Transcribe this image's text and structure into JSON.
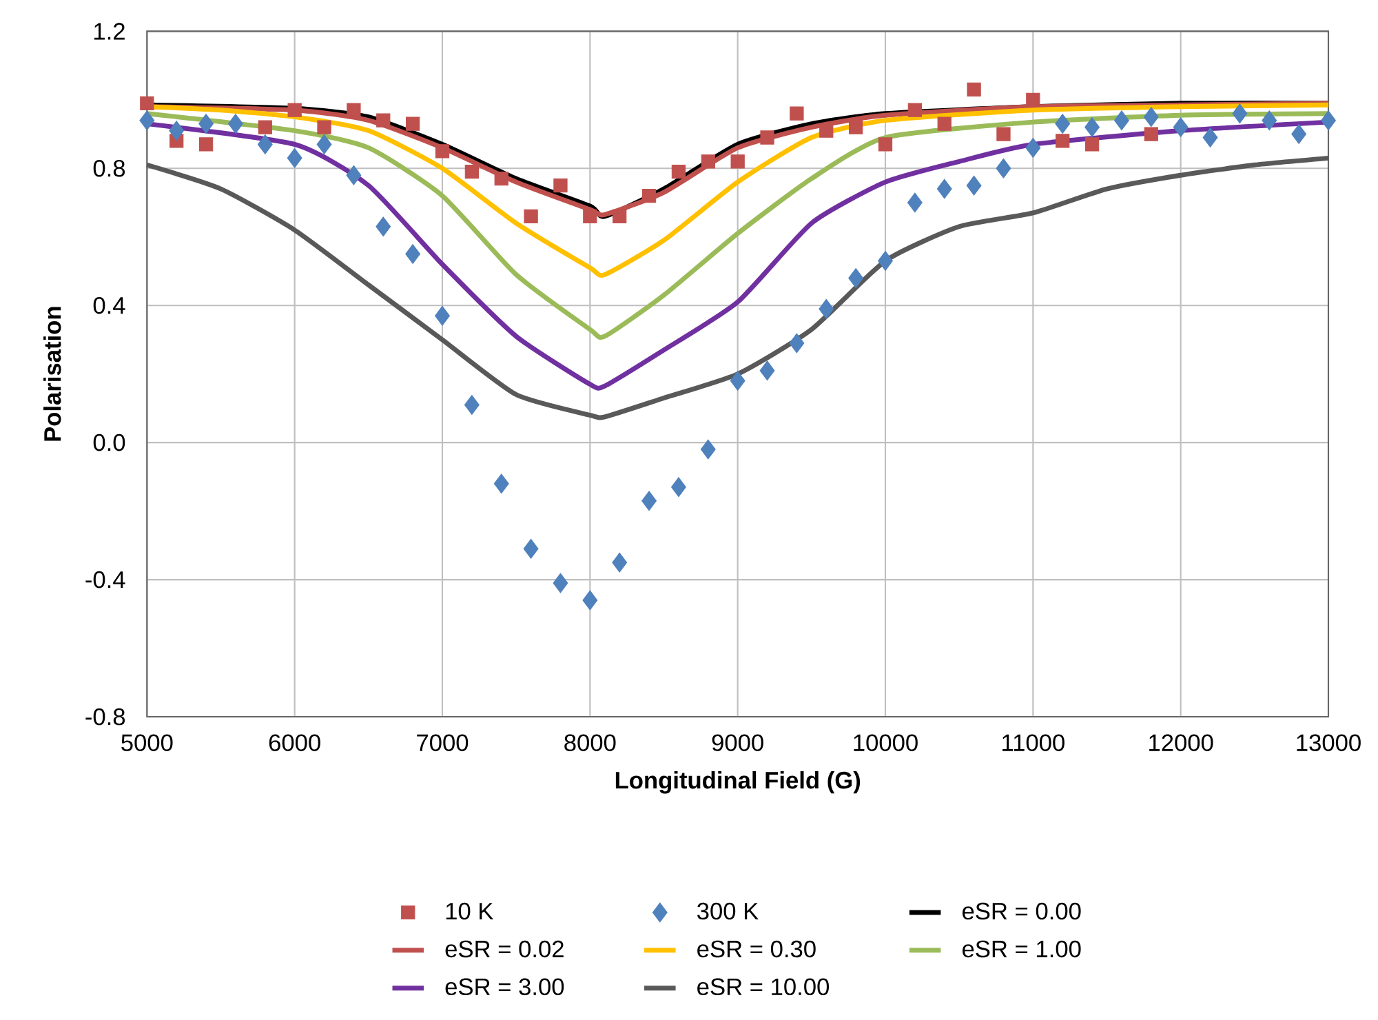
{
  "chart_data": {
    "type": "line",
    "xlabel": "Longitudinal Field (G)",
    "ylabel": "Polarisation",
    "xlim": [
      5000,
      13000
    ],
    "xticks": [
      5000,
      6000,
      7000,
      8000,
      9000,
      10000,
      11000,
      12000,
      13000
    ],
    "ylim": [
      -0.8,
      1.2
    ],
    "yticks": [
      {
        "value": -0.8,
        "label": "-0.8"
      },
      {
        "value": -0.4,
        "label": "-0.4"
      },
      {
        "value": 0,
        "label": "0.0"
      },
      0.4,
      0.8,
      1.2
    ],
    "grid": true,
    "legend": "bottom",
    "series": [
      {
        "name": "10 K",
        "type": "scatter",
        "marker": "square",
        "color": "#c0504d",
        "x": [
          5000,
          5200,
          5400,
          5800,
          6000,
          6200,
          6400,
          6600,
          6800,
          7000,
          7200,
          7400,
          7600,
          7800,
          8000,
          8200,
          8400,
          8600,
          8800,
          9000,
          9200,
          9400,
          9600,
          9800,
          10000,
          10200,
          10400,
          10600,
          10800,
          11000,
          11200,
          11400,
          11800
        ],
        "values": [
          0.99,
          0.88,
          0.87,
          0.92,
          0.97,
          0.92,
          0.97,
          0.94,
          0.93,
          0.85,
          0.79,
          0.77,
          0.66,
          0.75,
          0.66,
          0.66,
          0.72,
          0.79,
          0.82,
          0.82,
          0.89,
          0.96,
          0.91,
          0.92,
          0.87,
          0.97,
          0.93,
          1.03,
          0.9,
          1.0,
          0.88,
          0.87,
          0.9
        ]
      },
      {
        "name": "300 K",
        "type": "scatter",
        "marker": "diamond",
        "color": "#4f81bd",
        "x": [
          5000,
          5200,
          5400,
          5600,
          5800,
          6000,
          6200,
          6400,
          6600,
          6800,
          7000,
          7200,
          7400,
          7600,
          7800,
          8000,
          8200,
          8400,
          8600,
          8800,
          9000,
          9200,
          9400,
          9600,
          9800,
          10000,
          10200,
          10400,
          10600,
          10800,
          11000,
          11200,
          11400,
          11600,
          11800,
          12000,
          12200,
          12400,
          12600,
          12800,
          13000
        ],
        "values": [
          0.94,
          0.91,
          0.93,
          0.93,
          0.87,
          0.83,
          0.87,
          0.78,
          0.63,
          0.55,
          0.37,
          0.11,
          -0.12,
          -0.31,
          -0.41,
          -0.46,
          -0.35,
          -0.17,
          -0.13,
          -0.02,
          0.18,
          0.21,
          0.29,
          0.39,
          0.48,
          0.53,
          0.7,
          0.74,
          0.75,
          0.8,
          0.86,
          0.93,
          0.92,
          0.94,
          0.95,
          0.92,
          0.89,
          0.96,
          0.94,
          0.9,
          0.94
        ]
      },
      {
        "name": "eSR = 0.00",
        "marker": "none",
        "color": "#000000",
        "x": [
          5000,
          6000,
          6500,
          7000,
          7500,
          8000,
          8100,
          8500,
          9000,
          9500,
          10000,
          11000,
          12000,
          13000
        ],
        "values": [
          0.985,
          0.975,
          0.95,
          0.87,
          0.77,
          0.69,
          0.66,
          0.74,
          0.87,
          0.93,
          0.96,
          0.98,
          0.99,
          0.99
        ]
      },
      {
        "name": "eSR = 0.02",
        "marker": "none",
        "color": "#c0504d",
        "x": [
          5000,
          6000,
          6500,
          7000,
          7500,
          8000,
          8100,
          8500,
          9000,
          9500,
          10000,
          11000,
          12000,
          13000
        ],
        "values": [
          0.98,
          0.97,
          0.94,
          0.86,
          0.76,
          0.68,
          0.665,
          0.73,
          0.86,
          0.92,
          0.955,
          0.98,
          0.985,
          0.99
        ]
      },
      {
        "name": "eSR = 0.30",
        "marker": "none",
        "color": "#ffc000",
        "x": [
          5000,
          5500,
          6000,
          6500,
          7000,
          7500,
          8000,
          8100,
          8500,
          9000,
          9500,
          10000,
          11000,
          12000,
          13000
        ],
        "values": [
          0.98,
          0.97,
          0.95,
          0.91,
          0.8,
          0.64,
          0.51,
          0.49,
          0.59,
          0.76,
          0.89,
          0.94,
          0.97,
          0.98,
          0.985
        ]
      },
      {
        "name": "eSR = 1.00",
        "marker": "none",
        "color": "#9bbb59",
        "x": [
          5000,
          6000,
          6500,
          7000,
          7500,
          8000,
          8100,
          8500,
          9000,
          9500,
          10000,
          11000,
          12000,
          13000
        ],
        "values": [
          0.96,
          0.91,
          0.86,
          0.72,
          0.49,
          0.33,
          0.31,
          0.43,
          0.61,
          0.77,
          0.89,
          0.935,
          0.955,
          0.96
        ]
      },
      {
        "name": "eSR = 3.00",
        "marker": "none",
        "color": "#7030a0",
        "x": [
          5000,
          6000,
          6500,
          7000,
          7500,
          8000,
          8100,
          8500,
          9000,
          9500,
          10000,
          10500,
          11000,
          12000,
          13000
        ],
        "values": [
          0.93,
          0.87,
          0.75,
          0.52,
          0.31,
          0.17,
          0.165,
          0.27,
          0.41,
          0.64,
          0.76,
          0.82,
          0.87,
          0.91,
          0.935
        ]
      },
      {
        "name": "eSR = 10.00",
        "marker": "none",
        "color": "#595959",
        "x": [
          5000,
          5500,
          6000,
          6500,
          7000,
          7500,
          8000,
          8100,
          8500,
          9000,
          9500,
          10000,
          10500,
          11000,
          11500,
          12000,
          12500,
          13000
        ],
        "values": [
          0.81,
          0.74,
          0.62,
          0.46,
          0.3,
          0.14,
          0.08,
          0.075,
          0.13,
          0.2,
          0.33,
          0.53,
          0.63,
          0.67,
          0.74,
          0.78,
          0.81,
          0.83
        ]
      }
    ]
  }
}
